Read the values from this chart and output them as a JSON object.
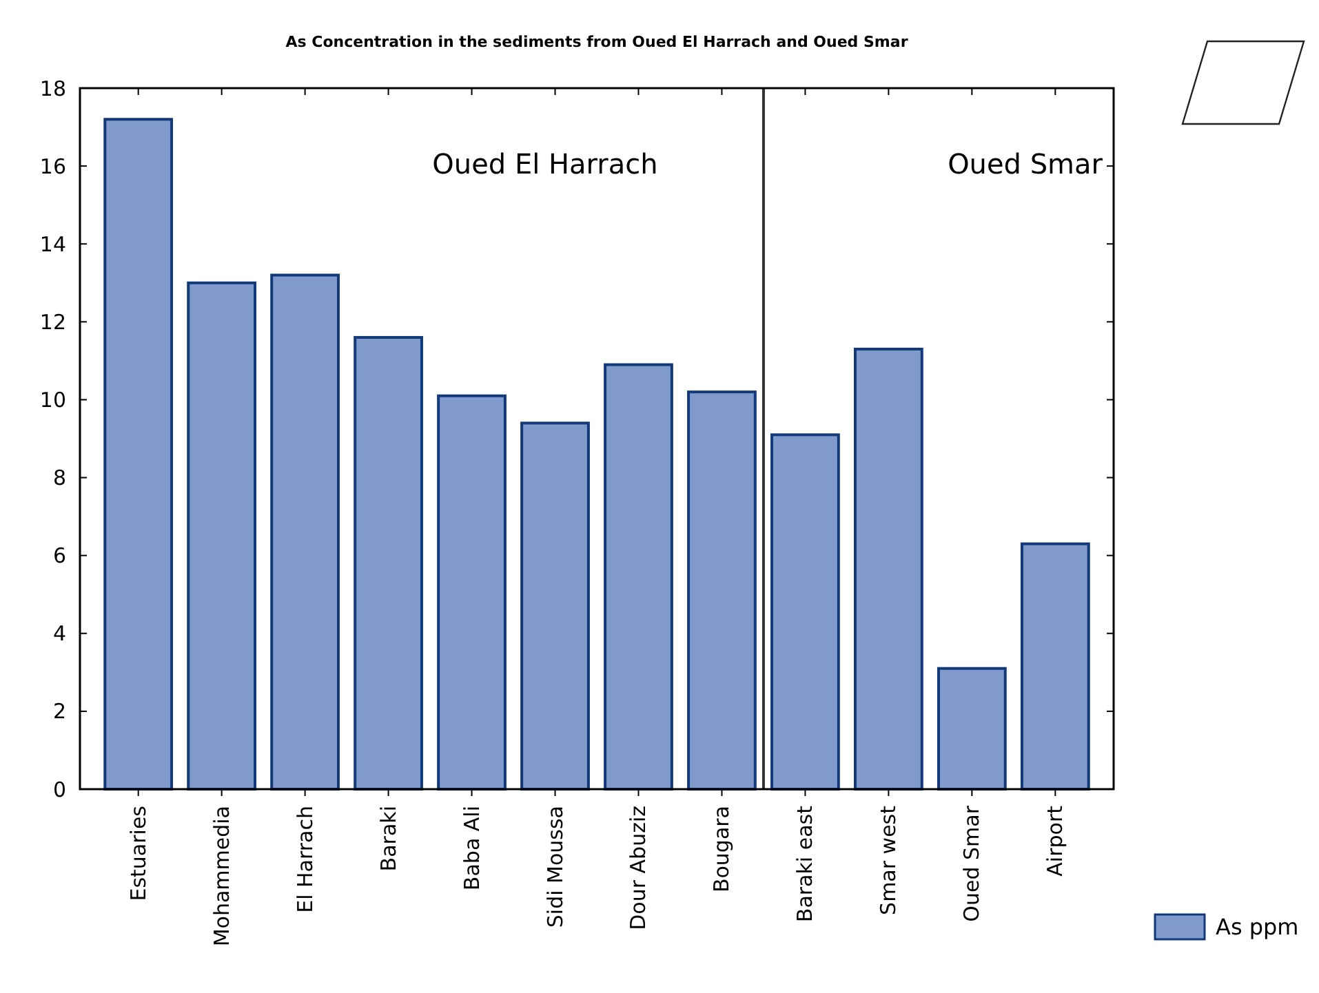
{
  "chart_data": {
    "type": "bar",
    "title": "As Concentration in the sediments from Oued El Harrach and Oued Smar",
    "categories": [
      "Estuaries",
      "Mohammedia",
      "El Harrach",
      "Baraki",
      "Baba Ali",
      "Sidi Moussa",
      "Dour Abuziz",
      "Bougara",
      "Baraki east",
      "Smar west",
      "Oued Smar",
      "Airport"
    ],
    "series": [
      {
        "name": "As ppm",
        "color": "#7f9acb",
        "values": [
          17.2,
          13.0,
          13.2,
          11.6,
          10.1,
          9.4,
          10.9,
          10.2,
          9.1,
          11.3,
          3.1,
          6.3
        ]
      }
    ],
    "ylim": [
      0,
      18
    ],
    "yticks": [
      0,
      2,
      4,
      6,
      8,
      10,
      12,
      14,
      16,
      18
    ],
    "grid": false,
    "legend": "bottom right",
    "annotations": [
      "Oued El Harrach",
      "Oued Smar"
    ]
  }
}
